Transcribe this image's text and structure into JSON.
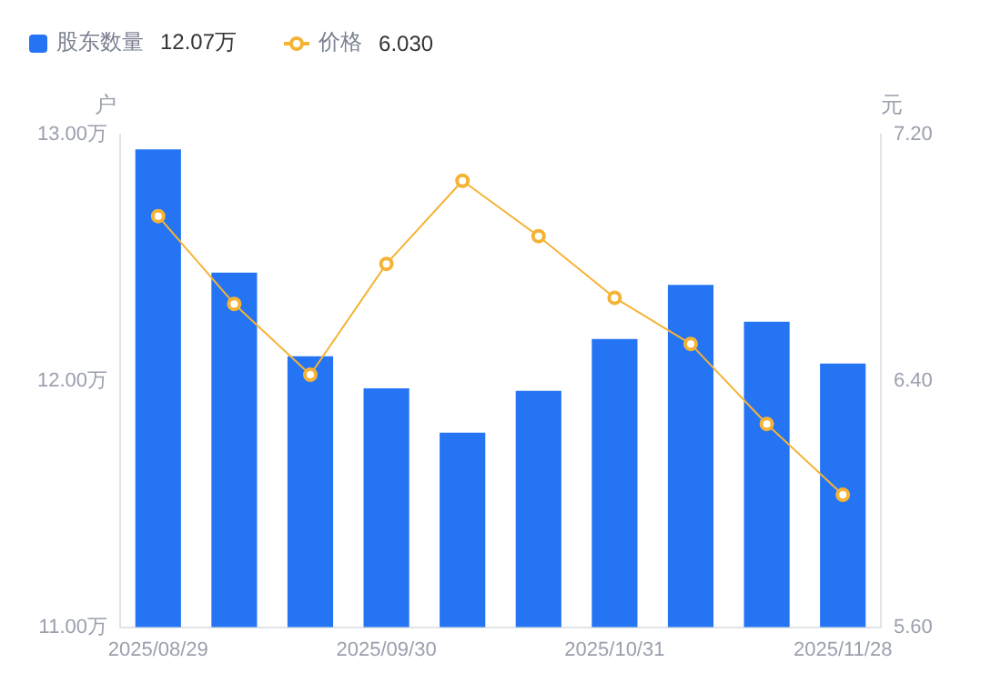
{
  "chart_data": {
    "type": "bar",
    "categories": [
      "2025/08/29",
      null,
      null,
      "2025/09/30",
      null,
      null,
      "2025/10/31",
      null,
      null,
      "2025/11/28"
    ],
    "series": [
      {
        "name": "股东数量",
        "color": "#2574f4",
        "values": [
          12.94,
          12.44,
          12.1,
          11.97,
          11.79,
          11.96,
          12.17,
          12.39,
          12.24,
          12.07
        ]
      },
      {
        "name": "价格",
        "type": "line",
        "axis": "y2",
        "color": "#f5b335",
        "values": [
          6.935,
          6.65,
          6.42,
          6.78,
          7.05,
          6.87,
          6.67,
          6.52,
          6.26,
          6.03
        ]
      }
    ],
    "ylabel": "户",
    "y2label": "元",
    "ylim": [
      11,
      13
    ],
    "yticks": [
      {
        "value": 11,
        "label": "11.00万"
      },
      {
        "value": 12,
        "label": "12.00万"
      },
      {
        "value": 13,
        "label": "13.00万"
      }
    ],
    "y2lim": [
      5.6,
      7.2
    ],
    "y2ticks": [
      {
        "value": 5.6,
        "label": "5.60"
      },
      {
        "value": 6.4,
        "label": "6.40"
      },
      {
        "value": 7.2,
        "label": "7.20"
      }
    ],
    "annotations": [
      "12.07万",
      "6.030"
    ],
    "legend": "top left",
    "marker": "circle",
    "line_style": "solid",
    "grid": false
  }
}
